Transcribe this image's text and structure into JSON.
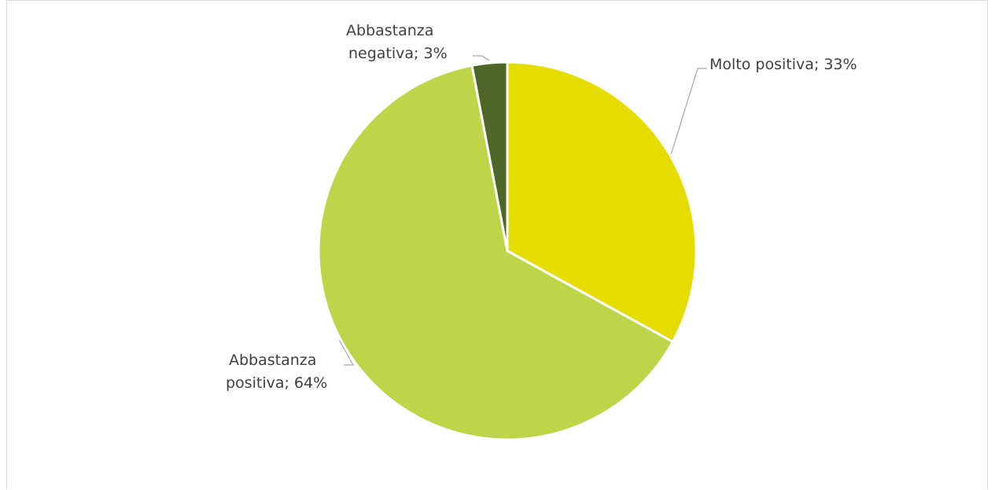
{
  "chart_data": {
    "type": "pie",
    "title": "",
    "slices": [
      {
        "name": "Molto positiva",
        "value": 33,
        "label": "Molto positiva; 33%",
        "color": "#e6dd00"
      },
      {
        "name": "Abbastanza positiva",
        "value": 64,
        "label_lines": [
          "Abbastanza",
          "positiva; 64%"
        ],
        "color": "#bed449"
      },
      {
        "name": "Abbastanza negativa",
        "value": 3,
        "label_lines": [
          "Abbastanza",
          "negativa; 3%"
        ],
        "color": "#4e6628"
      }
    ],
    "start_angle_deg": 0,
    "direction": "clockwise",
    "slice_border_color": "#ffffff",
    "legend": "none"
  }
}
